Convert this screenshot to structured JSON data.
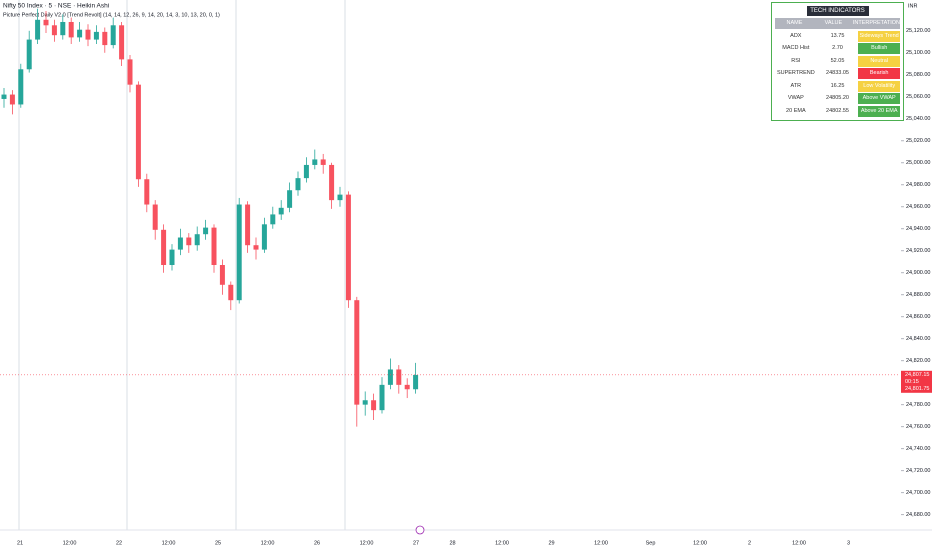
{
  "chart_data": {
    "type": "candlestick",
    "title": "Nifty 50 Index · 5 · NSE · Heikin Ashi",
    "subtitle": "Picture Perfect Daily V2.0 [Trend Revolt] (14, 14, 12, 26, 9, 14, 20, 14, 3, 10, 13, 20, 0, 1)",
    "currency": "INR",
    "up_color": "#26a69a",
    "down_color": "#f7525f",
    "open": [
      25058,
      25062,
      25053,
      25085,
      25112,
      25130,
      25125,
      25116,
      25128,
      25114,
      25121,
      25112,
      25119,
      25107,
      25125,
      25094,
      25071,
      24985,
      24962,
      24939,
      24907,
      24921,
      24932,
      24925,
      24935,
      24941,
      24907,
      24889,
      24875,
      24962,
      24925,
      24921,
      24944,
      24953,
      24959,
      24975,
      24986,
      24998,
      25003,
      24998,
      24966,
      24971,
      24875,
      24780,
      24784,
      24775,
      24798,
      24812,
      24798,
      24794
    ],
    "high": [
      25068,
      25066,
      25090,
      25120,
      25140,
      25138,
      25130,
      25135,
      25132,
      25128,
      25126,
      25125,
      25123,
      25132,
      25128,
      25098,
      25074,
      24990,
      24966,
      24944,
      24926,
      24940,
      24936,
      24942,
      24948,
      24944,
      24912,
      24892,
      24968,
      24965,
      24932,
      24950,
      24960,
      24966,
      24982,
      24992,
      25005,
      25012,
      25008,
      25000,
      24978,
      24974,
      24878,
      24792,
      24790,
      24805,
      24822,
      24816,
      24804,
      24818
    ],
    "low": [
      25050,
      25044,
      25050,
      25082,
      25108,
      25118,
      25110,
      25112,
      25108,
      25110,
      25106,
      25108,
      25100,
      25104,
      25088,
      25064,
      24978,
      24955,
      24930,
      24900,
      24902,
      24916,
      24918,
      24920,
      24930,
      24900,
      24880,
      24866,
      24872,
      24918,
      24912,
      24918,
      24940,
      24948,
      24955,
      24970,
      24982,
      24994,
      24990,
      24958,
      24960,
      24868,
      24760,
      24770,
      24766,
      24772,
      24794,
      24790,
      24786,
      24790
    ],
    "close": [
      25062,
      25053,
      25085,
      25112,
      25130,
      25125,
      25116,
      25128,
      25114,
      25121,
      25112,
      25119,
      25107,
      25125,
      25094,
      25071,
      24985,
      24962,
      24939,
      24907,
      24921,
      24932,
      24925,
      24935,
      24941,
      24907,
      24889,
      24875,
      24962,
      24925,
      24921,
      24944,
      24953,
      24959,
      24975,
      24986,
      24998,
      25003,
      24998,
      24966,
      24971,
      24875,
      24780,
      24784,
      24775,
      24798,
      24812,
      24798,
      24794,
      24807
    ],
    "ylim": [
      24666,
      25148
    ],
    "yticks": [
      {
        "value": 25120,
        "label": "25,120.00"
      },
      {
        "value": 25100,
        "label": "25,100.00"
      },
      {
        "value": 25080,
        "label": "25,080.00"
      },
      {
        "value": 25060,
        "label": "25,060.00"
      },
      {
        "value": 25040,
        "label": "25,040.00"
      },
      {
        "value": 25020,
        "label": "25,020.00"
      },
      {
        "value": 25000,
        "label": "25,000.00"
      },
      {
        "value": 24980,
        "label": "24,980.00"
      },
      {
        "value": 24960,
        "label": "24,960.00"
      },
      {
        "value": 24940,
        "label": "24,940.00"
      },
      {
        "value": 24920,
        "label": "24,920.00"
      },
      {
        "value": 24900,
        "label": "24,900.00"
      },
      {
        "value": 24880,
        "label": "24,880.00"
      },
      {
        "value": 24860,
        "label": "24,860.00"
      },
      {
        "value": 24840,
        "label": "24,840.00"
      },
      {
        "value": 24820,
        "label": "24,820.00"
      },
      {
        "value": 24780,
        "label": "24,780.00"
      },
      {
        "value": 24760,
        "label": "24,760.00"
      },
      {
        "value": 24740,
        "label": "24,740.00"
      },
      {
        "value": 24720,
        "label": "24,720.00"
      },
      {
        "value": 24700,
        "label": "24,700.00"
      },
      {
        "value": 24680,
        "label": "24,680.00"
      }
    ],
    "x_labels": [
      "21",
      "12:00",
      "22",
      "12:00",
      "25",
      "12:00",
      "26",
      "12:00",
      "27",
      "28",
      "12:00",
      "29",
      "12:00",
      "Sep",
      "12:00",
      "2",
      "12:00",
      "3"
    ],
    "last_price": {
      "value": 24807.15,
      "label": "24,807.15",
      "countdown": "00:15",
      "secondary_label": "24,801.75"
    }
  },
  "table": {
    "title": "TECH INDICATORS",
    "header": [
      "NAME",
      "VALUE",
      "INTERPRETATION"
    ],
    "rows": [
      [
        "ADX",
        "13.75",
        "Sideways Trend"
      ],
      [
        "MACD Hist",
        "2.70",
        "Bullish"
      ],
      [
        "RSI",
        "52.05",
        "Neutral"
      ],
      [
        "SUPERTREND",
        "24833.05",
        "Bearish"
      ],
      [
        "ATR",
        "16.25",
        "Low Volatility"
      ],
      [
        "VWAP",
        "24805.20",
        "Above VWAP"
      ],
      [
        "20 EMA",
        "24802.55",
        "Above 20 EMA"
      ]
    ],
    "row_colors": [
      "#f5d142",
      "#4caf50",
      "#f5d142",
      "#f23645",
      "#f5d142",
      "#4caf50",
      "#4caf50"
    ]
  }
}
